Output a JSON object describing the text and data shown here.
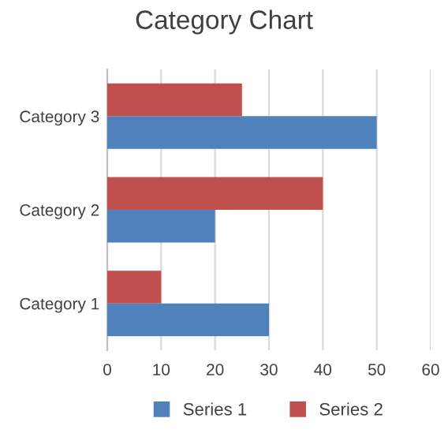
{
  "chart_data": {
    "type": "bar",
    "title": "Category Chart",
    "orientation": "horizontal",
    "categories": [
      "Category 3",
      "Category 2",
      "Category 1"
    ],
    "series": [
      {
        "name": "Series 1",
        "color": "#4f81bd",
        "values": [
          50,
          20,
          30
        ]
      },
      {
        "name": "Series 2",
        "color": "#c0504d",
        "values": [
          25,
          40,
          10
        ]
      }
    ],
    "xlim": [
      0,
      60
    ],
    "xticks": [
      0,
      10,
      20,
      30,
      40,
      50,
      60
    ],
    "grid": "x",
    "legend": "bottom"
  }
}
